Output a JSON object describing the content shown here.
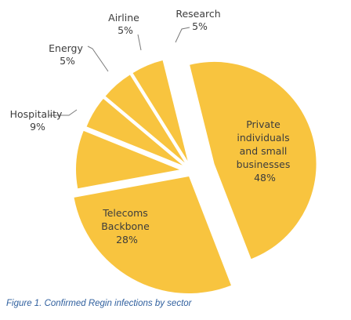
{
  "chart_data": {
    "type": "pie",
    "title": "",
    "slices": [
      {
        "name": "Private individuals and small businesses",
        "label_lines": [
          "Private",
          "individuals",
          "and small",
          "businesses",
          "48%"
        ],
        "value": 48
      },
      {
        "name": "Telecoms Backbone",
        "label_lines": [
          "Telecoms",
          "Backbone",
          "28%"
        ],
        "value": 28
      },
      {
        "name": "Hospitality",
        "label_lines": [
          "Hospitality",
          "9%"
        ],
        "value": 9
      },
      {
        "name": "Energy",
        "label_lines": [
          "Energy",
          "5%"
        ],
        "value": 5
      },
      {
        "name": "Airline",
        "label_lines": [
          "Airline",
          "5%"
        ],
        "value": 5
      },
      {
        "name": "Research",
        "label_lines": [
          "Research",
          "5%"
        ],
        "value": 5
      }
    ],
    "colors": {
      "fill": "#f8c43f",
      "leader": "#7a7a7a",
      "label": "#3c3c3c"
    },
    "exploded": true
  },
  "caption": "Figure 1. Confirmed Regin infections by sector"
}
